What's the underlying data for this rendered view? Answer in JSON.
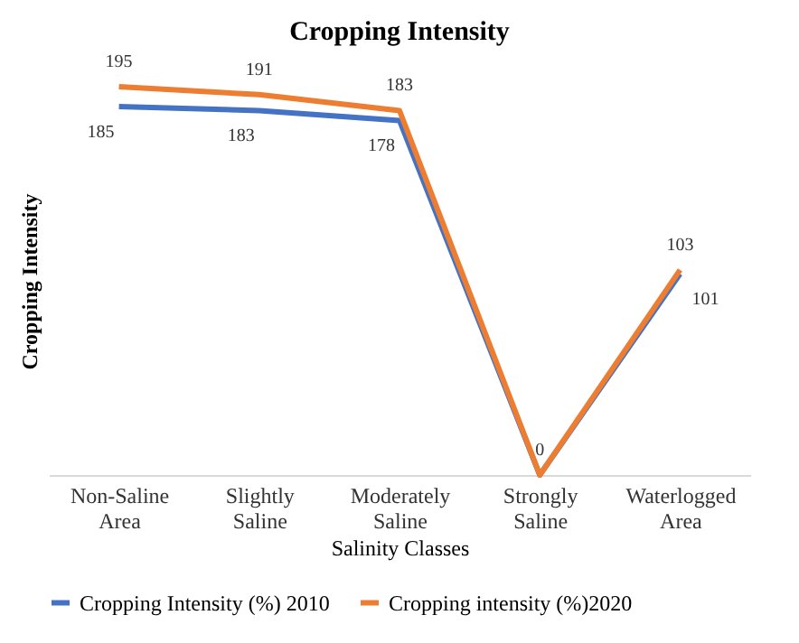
{
  "chart_data": {
    "type": "line",
    "title": "Cropping Intensity",
    "xlabel": "Salinity Classes",
    "ylabel": "Cropping Intensity",
    "categories": [
      "Non-Saline Area",
      "Slightly Saline",
      "Moderately Saline",
      "Strongly Saline",
      "Waterlogged Area"
    ],
    "series": [
      {
        "name": "Cropping Intensity (%) 2010",
        "color": "#4472c4",
        "values": [
          185,
          183,
          178,
          0,
          101
        ],
        "value_labels": [
          "185",
          "183",
          "178",
          null,
          "101"
        ]
      },
      {
        "name": "Cropping intensity (%)2020",
        "color": "#ed7d31",
        "values": [
          195,
          191,
          183,
          0,
          103
        ],
        "value_labels": [
          "195",
          "191",
          "183",
          "0",
          "103"
        ]
      }
    ],
    "legend": "bottom",
    "grid": false,
    "tick_labels": "x",
    "marker": "none",
    "line_style": "solid"
  }
}
